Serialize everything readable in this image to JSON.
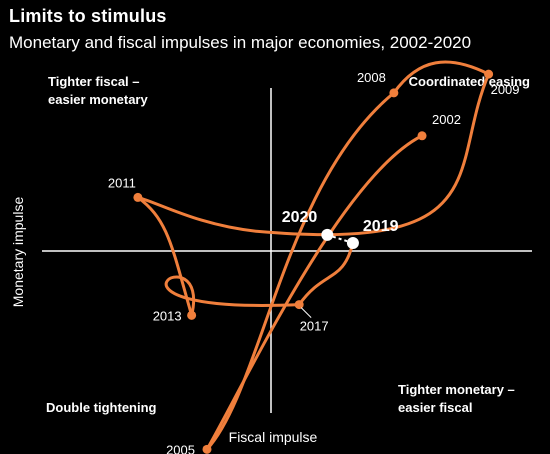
{
  "title": "Limits to stimulus",
  "subtitle": "Monetary and fiscal impulses in major economies, 2002-2020",
  "colors": {
    "background": "#000000",
    "line": "#f07f3c",
    "text": "#ffffff",
    "highlight": "#ffffff"
  },
  "chart_data": {
    "type": "scatter",
    "xlabel": "Fiscal impulse",
    "ylabel": "Monetary impulse",
    "xlim": [
      -10,
      10
    ],
    "ylim": [
      -10,
      10
    ],
    "grid": false,
    "quadrants": {
      "top_left": [
        "Tighter fiscal –",
        "easier monetary"
      ],
      "top_right": [
        "Coordinated easing"
      ],
      "bottom_left": [
        "Double tightening"
      ],
      "bottom_right": [
        "Tighter monetary –",
        "easier fiscal"
      ]
    },
    "series": [
      {
        "points": [
          {
            "label": "2002",
            "x": 5.9,
            "y": 4.3,
            "marker": "dot"
          },
          {
            "label": "2005",
            "x": -2.5,
            "y": -7.4,
            "marker": "dot"
          },
          {
            "label": "2008",
            "x": 4.8,
            "y": 5.9,
            "marker": "dot"
          },
          {
            "label": "2009",
            "x": 8.5,
            "y": 6.6,
            "marker": "dot"
          },
          {
            "label": "2011",
            "x": -5.2,
            "y": 2.0,
            "marker": "dot"
          },
          {
            "label": "2013",
            "x": -3.1,
            "y": -2.4,
            "marker": "dot"
          },
          {
            "label": "2017",
            "x": 1.1,
            "y": -2.0,
            "marker": "dot"
          },
          {
            "label": "2019",
            "x": 3.2,
            "y": 0.3,
            "marker": "highlight"
          },
          {
            "label": "2020",
            "x": 2.2,
            "y": 0.6,
            "marker": "highlight"
          }
        ]
      }
    ]
  }
}
